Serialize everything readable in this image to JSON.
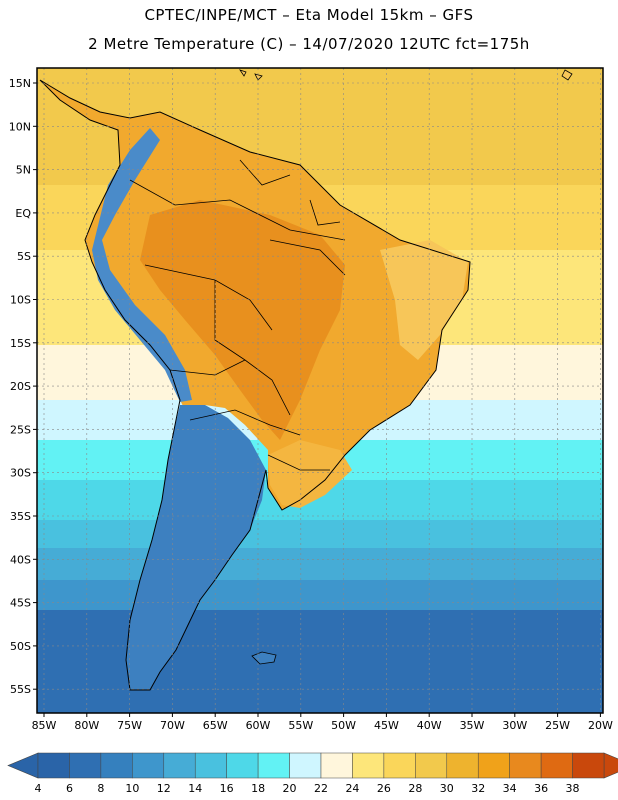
{
  "header": {
    "line1": "CPTEC/INPE/MCT –  Eta Model 15km – GFS",
    "line2": "2 Metre Temperature (C) – 14/07/2020 12UTC fct=175h"
  },
  "map": {
    "lat_labels": [
      "15N",
      "10N",
      "5N",
      "EQ",
      "5S",
      "10S",
      "15S",
      "20S",
      "25S",
      "30S",
      "35S",
      "40S",
      "45S",
      "50S",
      "55S"
    ],
    "lon_labels": [
      "85W",
      "80W",
      "75W",
      "70W",
      "65W",
      "60W",
      "55W",
      "50W",
      "45W",
      "40W",
      "35W",
      "30W",
      "25W",
      "20W"
    ],
    "ocean_bands": [
      {
        "temp": 28,
        "color": "#f2c94c"
      },
      {
        "temp": 26,
        "color": "#fad65a"
      },
      {
        "temp": 24,
        "color": "#fde67a"
      },
      {
        "temp": 22,
        "color": "#fff6dc"
      },
      {
        "temp": 20,
        "color": "#cff6ff"
      },
      {
        "temp": 18,
        "color": "#62f2f4"
      },
      {
        "temp": 16,
        "color": "#4ed8e8"
      },
      {
        "temp": 14,
        "color": "#49c1df"
      },
      {
        "temp": 12,
        "color": "#46acd6"
      },
      {
        "temp": 10,
        "color": "#3e96cc"
      },
      {
        "temp": 8,
        "color": "#2f6fb2"
      }
    ],
    "land_colors": {
      "hot": "#e8901e",
      "warm": "#f1a92e",
      "mild": "#f7c659",
      "andes": "#4a8bc9",
      "patagonia": "#3d80c0",
      "south_cone": "#f4b640"
    }
  },
  "colorbar": {
    "labels": [
      "4",
      "6",
      "8",
      "10",
      "12",
      "14",
      "16",
      "18",
      "20",
      "22",
      "24",
      "26",
      "28",
      "30",
      "32",
      "34",
      "36",
      "38"
    ],
    "colors": [
      "#2a64a8",
      "#2f6fb2",
      "#3580be",
      "#3e96cc",
      "#46acd6",
      "#49c1df",
      "#4ed8e8",
      "#62f2f4",
      "#cff6ff",
      "#fff6dc",
      "#fde67a",
      "#fad65a",
      "#f2c94c",
      "#eeb32e",
      "#f0a21a",
      "#e8891e",
      "#df6a12",
      "#c9480c"
    ],
    "low_color": "#2a64a8",
    "high_color": "#c9480c"
  }
}
